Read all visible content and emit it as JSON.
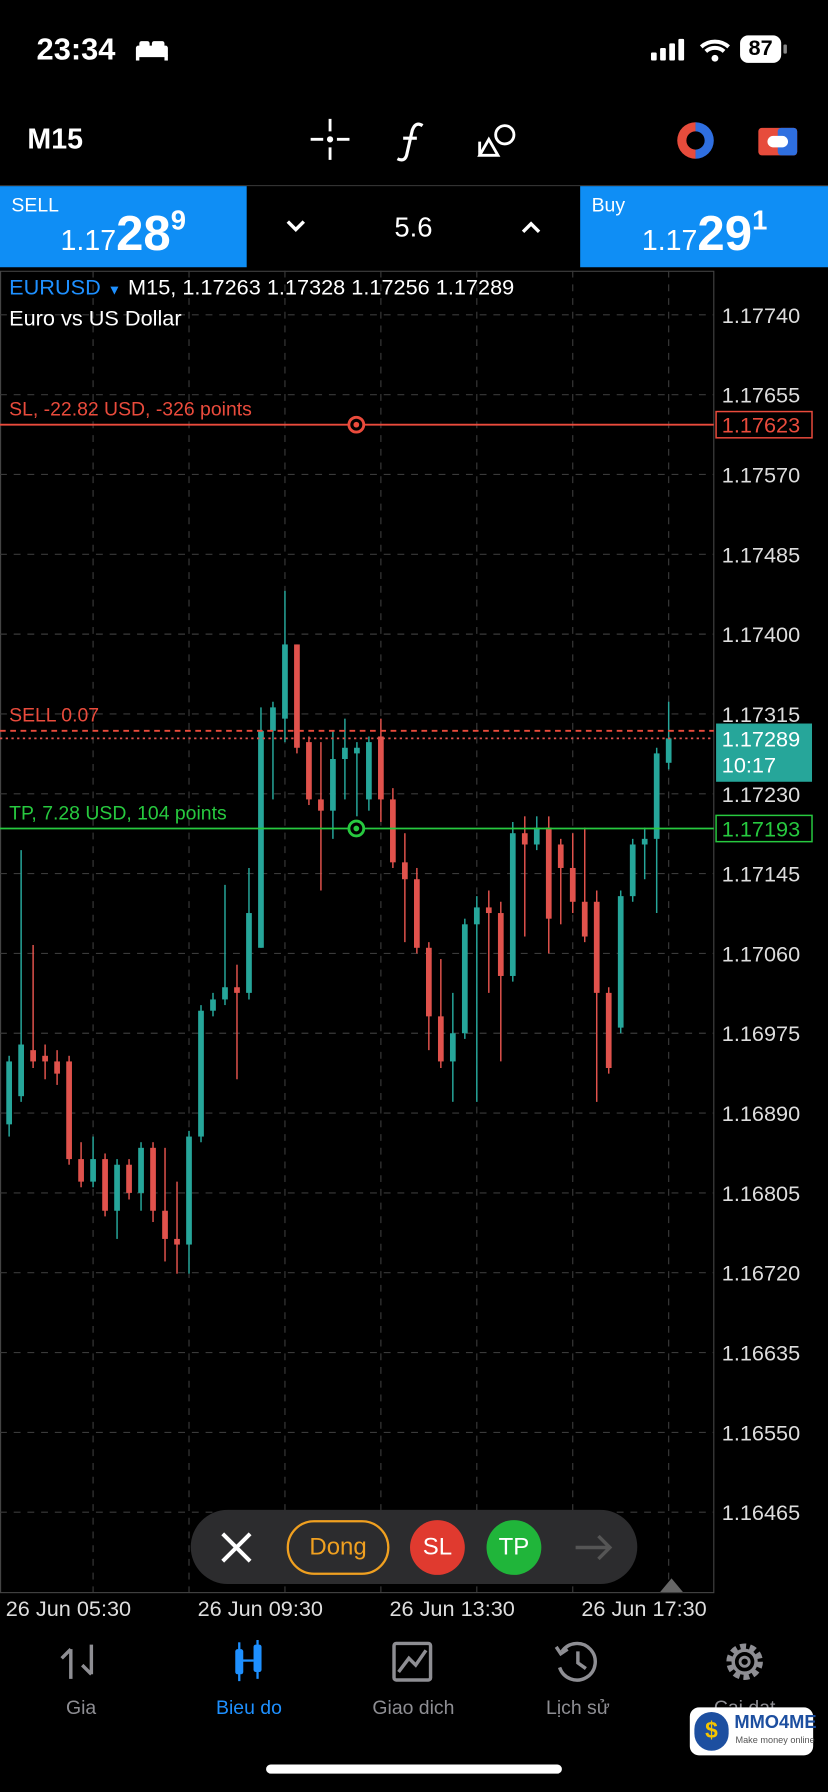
{
  "status_bar": {
    "time": "23:34",
    "battery": "87"
  },
  "toolbar": {
    "timeframe": "M15"
  },
  "quote": {
    "sell_label": "SELL",
    "sell_price": {
      "prefix": "1.17",
      "big": "28",
      "small": "9"
    },
    "spread": "5.6",
    "buy_label": "Buy",
    "buy_price": {
      "prefix": "1.17",
      "big": "29",
      "small": "1"
    }
  },
  "chart_data": {
    "type": "candlestick",
    "symbol": "EURUSD",
    "header_timeframe": "M15,",
    "description": "Euro vs US Dollar",
    "categories": [
      "26 Jun 05:30",
      null,
      null,
      null,
      null,
      null,
      null,
      null,
      null,
      null,
      null,
      null,
      null,
      null,
      null,
      null,
      "26 Jun 09:30",
      null,
      null,
      null,
      null,
      null,
      null,
      null,
      null,
      null,
      null,
      null,
      null,
      null,
      null,
      null,
      "26 Jun 13:30",
      null,
      null,
      null,
      null,
      null,
      null,
      null,
      null,
      null,
      null,
      null,
      null,
      null,
      null,
      null,
      "26 Jun 17:30",
      null,
      null,
      null,
      null,
      null,
      null,
      null
    ],
    "open": [
      1.16878,
      1.16908,
      1.16957,
      1.16951,
      1.16945,
      1.16945,
      1.16841,
      1.16817,
      1.16841,
      1.16786,
      1.16835,
      1.16805,
      1.16853,
      1.16786,
      1.16756,
      1.1675,
      1.16865,
      1.16999,
      1.17011,
      1.17024,
      1.17018,
      1.17066,
      1.17297,
      1.1731,
      1.17389,
      1.17285,
      1.17224,
      1.17212,
      1.17267,
      1.17273,
      1.17224,
      1.17291,
      1.17224,
      1.17157,
      1.17139,
      1.17066,
      1.16993,
      1.16945,
      1.16975,
      1.17091,
      1.17109,
      1.17103,
      1.17036,
      1.17188,
      1.17176,
      1.17194,
      1.17176,
      1.17151,
      1.17115,
      1.17115,
      1.17018,
      1.16981,
      1.17121,
      1.17176,
      1.17182,
      1.17263
    ],
    "high": [
      1.16951,
      1.1717,
      1.17069,
      1.16963,
      1.16957,
      1.16951,
      1.16859,
      1.16865,
      1.16847,
      1.16841,
      1.16841,
      1.16859,
      1.16859,
      1.16853,
      1.16817,
      1.16871,
      1.17005,
      1.17018,
      1.17133,
      1.17048,
      1.17151,
      1.17322,
      1.17328,
      1.17446,
      1.17389,
      1.17291,
      1.17285,
      1.17297,
      1.1731,
      1.17285,
      1.17291,
      1.1731,
      1.17236,
      1.17188,
      1.17151,
      1.17072,
      1.17054,
      1.17018,
      1.17097,
      1.17121,
      1.17127,
      1.17115,
      1.172,
      1.17206,
      1.17206,
      1.17206,
      1.17182,
      1.17188,
      1.17194,
      1.17127,
      1.17024,
      1.17127,
      1.17182,
      1.17194,
      1.17279,
      1.17328
    ],
    "low": [
      1.16865,
      1.16902,
      1.16938,
      1.16926,
      1.1692,
      1.16835,
      1.16811,
      1.16811,
      1.1678,
      1.16756,
      1.16798,
      1.16786,
      1.16774,
      1.16732,
      1.16719,
      1.16719,
      1.16859,
      1.16993,
      1.17005,
      1.16926,
      1.17011,
      1.17066,
      1.17224,
      1.17285,
      1.17273,
      1.17218,
      1.17127,
      1.17182,
      1.17224,
      1.17206,
      1.17212,
      1.172,
      1.17151,
      1.17072,
      1.1706,
      1.16957,
      1.16938,
      1.16902,
      1.16969,
      1.16902,
      1.17018,
      1.16945,
      1.1703,
      1.17078,
      1.1717,
      1.1706,
      1.17091,
      1.17103,
      1.17072,
      1.16902,
      1.16932,
      1.16975,
      1.17115,
      1.17139,
      1.17103,
      1.17256
    ],
    "close": [
      1.16945,
      1.16963,
      1.16945,
      1.16945,
      1.16932,
      1.16841,
      1.16817,
      1.16841,
      1.16786,
      1.16835,
      1.16805,
      1.16853,
      1.16786,
      1.16756,
      1.1675,
      1.16865,
      1.16999,
      1.17011,
      1.17024,
      1.17018,
      1.17103,
      1.17297,
      1.17322,
      1.17389,
      1.17279,
      1.17224,
      1.17212,
      1.17267,
      1.17279,
      1.17279,
      1.17285,
      1.17224,
      1.17157,
      1.17139,
      1.17066,
      1.16993,
      1.16945,
      1.16975,
      1.17091,
      1.17109,
      1.17103,
      1.17036,
      1.17188,
      1.17176,
      1.17194,
      1.17097,
      1.17151,
      1.17115,
      1.17078,
      1.17018,
      1.16938,
      1.17121,
      1.17176,
      1.17182,
      1.17273,
      1.17289
    ],
    "up_color": "#26a69a",
    "down_color": "#e0524c",
    "ylim": [
      1.1638,
      1.17787
    ],
    "yticks": [
      {
        "value": 1.1774,
        "label": "1.17740"
      },
      1.17655,
      {
        "value": 1.1757,
        "label": "1.17570"
      },
      1.17485,
      {
        "value": 1.174,
        "label": "1.17400"
      },
      1.17315,
      {
        "value": 1.1723,
        "label": "1.17230"
      },
      1.17145,
      {
        "value": 1.1706,
        "label": "1.17060"
      },
      1.16975,
      {
        "value": 1.1689,
        "label": "1.16890"
      },
      1.16805,
      {
        "value": 1.1672,
        "label": "1.16720"
      },
      1.16635,
      {
        "value": 1.1655,
        "label": "1.16550"
      },
      1.16465
    ],
    "grid": true,
    "levels": [
      {
        "label": "SL, -22.82 USD, -326 points",
        "value": 1.17623,
        "color": "#ea4b3c",
        "style": "solid"
      },
      {
        "label": "SELL 0.07",
        "value": 1.17297,
        "color": "#ea4b3c",
        "style": "dashed"
      },
      {
        "label": "TP, 7.28 USD, 104 points",
        "value": 1.17193,
        "color": "#27c93f",
        "style": "solid"
      }
    ],
    "timer": "10:17"
  },
  "trade_bar": {
    "close": "Dong",
    "sl": "SL",
    "tp": "TP"
  },
  "nav": [
    "Gia",
    "Bieu do",
    "Giao dich",
    "Lịch sử",
    "Cai dat"
  ],
  "watermark": {
    "title": "MMO4ME",
    "tagline": "Make money online"
  }
}
